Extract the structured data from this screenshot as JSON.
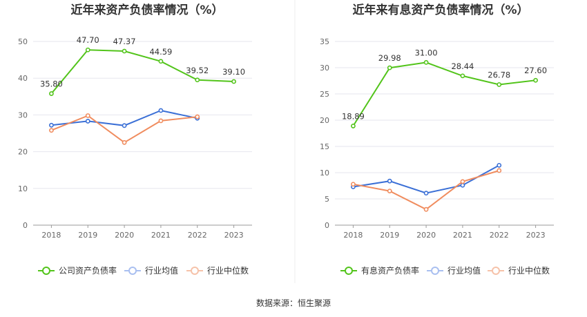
{
  "source": "数据来源：恒生聚源",
  "colors": {
    "primary": "#52c41a",
    "industry_avg": "#3a6fd6",
    "industry_median": "#f08c5e"
  },
  "chart_data": [
    {
      "type": "line",
      "title": "近年来资产负债率情况（%）",
      "categories": [
        "2018",
        "2019",
        "2020",
        "2021",
        "2022",
        "2023"
      ],
      "ylim": [
        0,
        50
      ],
      "yticks": [
        0,
        10,
        20,
        30,
        40,
        50
      ],
      "grid": true,
      "legend_position": "bottom",
      "series": [
        {
          "name": "公司资产负债率",
          "values": [
            35.8,
            47.7,
            47.37,
            44.59,
            39.52,
            39.1
          ],
          "labels": [
            "35.80",
            "47.70",
            "47.37",
            "44.59",
            "39.52",
            "39.10"
          ]
        },
        {
          "name": "行业均值",
          "values": [
            27.2,
            28.3,
            27.1,
            31.2,
            29.1,
            null
          ]
        },
        {
          "name": "行业中位数",
          "values": [
            25.8,
            29.8,
            22.5,
            28.4,
            29.5,
            null
          ]
        }
      ]
    },
    {
      "type": "line",
      "title": "近年来有息资产负债率情况（%）",
      "categories": [
        "2018",
        "2019",
        "2020",
        "2021",
        "2022",
        "2023"
      ],
      "ylim": [
        0,
        35
      ],
      "yticks": [
        0,
        5,
        10,
        15,
        20,
        25,
        30,
        35
      ],
      "grid": true,
      "legend_position": "bottom",
      "series": [
        {
          "name": "有息资产负债率",
          "values": [
            18.89,
            29.98,
            31.0,
            28.44,
            26.78,
            27.6
          ],
          "labels": [
            "18.89",
            "29.98",
            "31.00",
            "28.44",
            "26.78",
            "27.60"
          ]
        },
        {
          "name": "行业均值",
          "values": [
            7.3,
            8.4,
            6.1,
            7.6,
            11.4,
            null
          ]
        },
        {
          "name": "行业中位数",
          "values": [
            7.8,
            6.5,
            3.0,
            8.3,
            10.4,
            null
          ]
        }
      ]
    }
  ]
}
